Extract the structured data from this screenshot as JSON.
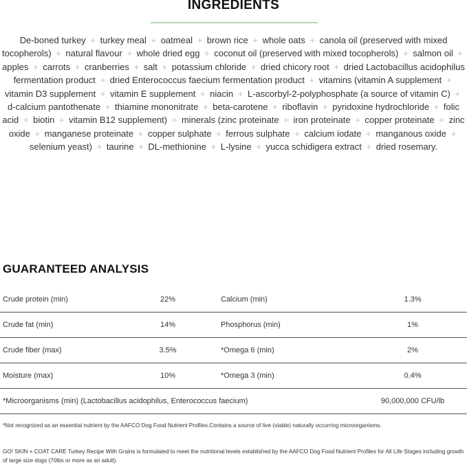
{
  "ingredients": {
    "title": "INGREDIENTS",
    "separator": "+",
    "accent_color": "#b9d5b7",
    "items": [
      "De-boned turkey",
      "turkey meal",
      "oatmeal",
      "brown rice",
      "whole oats",
      "canola oil (preserved with mixed tocopherols)",
      "natural flavour",
      "whole dried egg",
      "coconut oil (preserved with mixed tocopherols)",
      "salmon oil",
      "apples",
      "carrots",
      "cranberries",
      "salt",
      "potassium chloride",
      "dried chicory root",
      "dried Lactobacillus acidophilus fermentation product",
      "dried Enterococcus faecium fermentation product",
      "vitamins (vitamin A supplement",
      "vitamin D3 supplement",
      "vitamin E supplement",
      "niacin",
      "L-ascorbyl-2-polyphosphate (a source of vitamin C)",
      "d-calcium pantothenate",
      "thiamine mononitrate",
      "beta-carotene",
      "riboflavin",
      "pyridoxine hydrochloride",
      "folic acid",
      "biotin",
      "vitamin B12 supplement)",
      "minerals (zinc proteinate",
      "iron proteinate",
      "copper proteinate",
      "zinc oxide",
      "manganese proteinate",
      "copper sulphate",
      "ferrous sulphate",
      "calcium iodate",
      "manganous oxide",
      "selenium yeast)",
      "taurine",
      "DL-methionine",
      "L-lysine",
      "yucca schidigera extract",
      "dried rosemary."
    ]
  },
  "analysis": {
    "title": "GUARANTEED ANALYSIS",
    "rows": [
      {
        "label1": "Crude protein (min)",
        "value1": "22%",
        "label2": "Calcium (min)",
        "value2": "1.3%"
      },
      {
        "label1": "Crude fat (min)",
        "value1": "14%",
        "label2": "Phosphorus (min)",
        "value2": "1%"
      },
      {
        "label1": "Crude fiber (max)",
        "value1": "3.5%",
        "label2": "*Omega 6 (min)",
        "value2": "2%"
      },
      {
        "label1": "Moisture (max)",
        "value1": "10%",
        "label2": "*Omega 3 (min)",
        "value2": "0.4%"
      }
    ],
    "micro": {
      "label": "*Microorganisms (min) (Lactobacillus acidophilus, Enterococcus faecium)",
      "value": "90,000,000 CFU/lb"
    },
    "footnote": "*Not recognized as an essential nutrient by the AAFCO Dog Food Nutrient Profiles.Contains a source of live (viable) naturally occurring microorganisms.",
    "statement": "GO! SKIN + COAT CARE Turkey Recipe With Grains is formulated to meet the nutritional levels established by the AAFCO Dog Food Nutrient Profiles for All Life Stages including growth of large size dogs (70lbs or more as an adult)."
  }
}
